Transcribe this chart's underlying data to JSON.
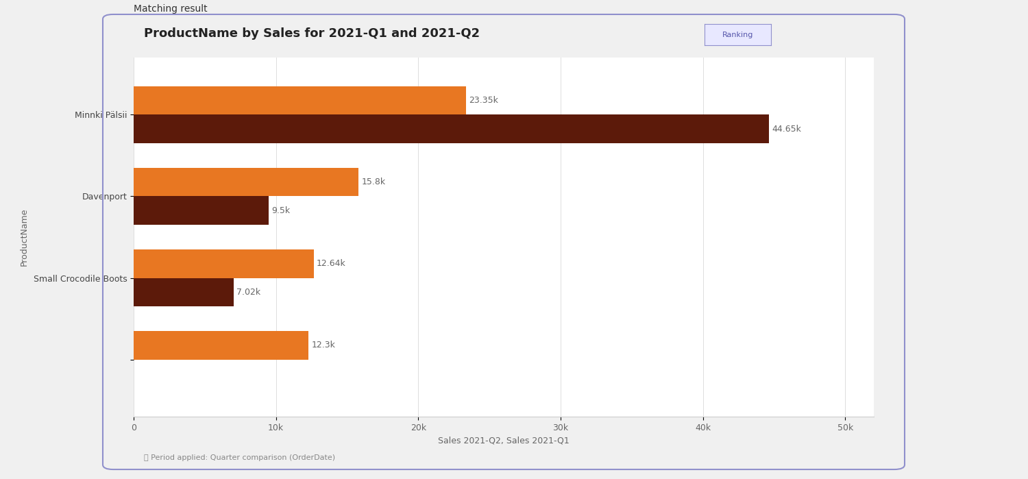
{
  "title": "ProductName by Sales for 2021-Q1 and 2021-Q2",
  "ranking_label": "Ranking",
  "products": [
    "Minnki Pälsii",
    "Davenport",
    "Small Crocodile Boots",
    ""
  ],
  "sales_q2": [
    23350,
    15800,
    12640,
    12300
  ],
  "sales_q1": [
    44650,
    9500,
    7020,
    null
  ],
  "color_q2": "#e87722",
  "color_q1": "#5c1a0a",
  "xlabel": "Sales 2021-Q2, Sales 2021-Q1",
  "ylabel": "ProductName",
  "period_label": "Period applied: Quarter comparison (OrderDate)",
  "xticks": [
    0,
    10000,
    20000,
    30000,
    40000,
    50000
  ],
  "xtick_labels": [
    "0",
    "10k",
    "20k",
    "30k",
    "40k",
    "50k"
  ],
  "background_color": "#ffffff",
  "border_color": "#7b68ee",
  "chart_bg": "#f9f9f9",
  "bar_height": 0.35,
  "annotation_fontsize": 9,
  "title_fontsize": 13,
  "label_fontsize": 9,
  "tick_fontsize": 9
}
